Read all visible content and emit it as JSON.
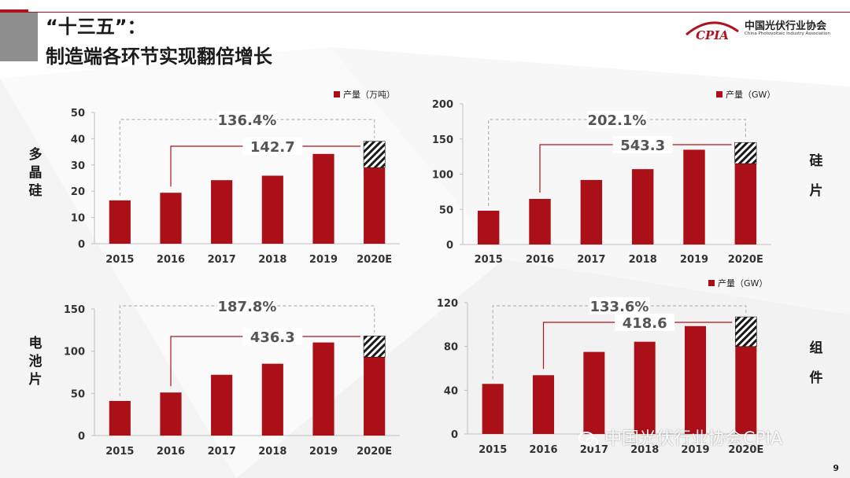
{
  "header": {
    "title_line1": "“十三五”：",
    "title_line2": "制造端各环节实现翻倍增长"
  },
  "logo": {
    "mark_text": "CPIA",
    "name_cn": "中国光伏行业协会",
    "name_en": "China Photovoltaic Industry Association"
  },
  "side_labels": {
    "polysilicon": "多晶硅",
    "wafer": "硅片",
    "cell": "电池片",
    "module": "组件"
  },
  "footer": {
    "page_number": "9",
    "watermark": "中国光伏行业协会CPIA"
  },
  "colors": {
    "bar": "#ab0f17",
    "accent": "#b0121d",
    "dashed": "#b5b5b5"
  },
  "chart_data": [
    {
      "type": "bar",
      "categories": [
        "2015",
        "2016",
        "2017",
        "2018",
        "2019",
        "2020E"
      ],
      "series": [
        {
          "name": "产量（万吨）",
          "values": [
            16.5,
            19.4,
            24.2,
            25.9,
            34.2,
            29
          ]
        }
      ],
      "forecast_extra": 10,
      "ylim": [
        0,
        50
      ],
      "yticks": [
        0,
        10,
        20,
        30,
        40,
        50
      ],
      "growth_total_label": "136.4%",
      "growth_cagr_label": "142.7",
      "legend": "产量（万吨）",
      "legend_position": "top-right",
      "grid": false
    },
    {
      "type": "bar",
      "categories": [
        "2015",
        "2016",
        "2017",
        "2018",
        "2019",
        "2020E"
      ],
      "series": [
        {
          "name": "产量（GW）",
          "values": [
            48,
            64.8,
            91.7,
            107.1,
            134.7,
            115
          ]
        }
      ],
      "forecast_extra": 30,
      "ylim": [
        0,
        200
      ],
      "yticks": [
        0,
        50,
        100,
        150,
        200
      ],
      "growth_total_label": "202.1%",
      "growth_cagr_label": "543.3",
      "legend": "产量（GW）",
      "legend_position": "top-right",
      "grid": false
    },
    {
      "type": "bar",
      "categories": [
        "2015",
        "2016",
        "2017",
        "2018",
        "2019",
        "2020E"
      ],
      "series": [
        {
          "name": "产量（GW）",
          "values": [
            41,
            51,
            72,
            85.1,
            110.3,
            93
          ]
        }
      ],
      "forecast_extra": 25,
      "ylim": [
        0,
        150
      ],
      "yticks": [
        0,
        50,
        100,
        150
      ],
      "growth_total_label": "187.8%",
      "growth_cagr_label": "436.3",
      "legend": "",
      "legend_position": "",
      "grid": false
    },
    {
      "type": "bar",
      "categories": [
        "2015",
        "2016",
        "2017",
        "2018",
        "2019",
        "2020E"
      ],
      "series": [
        {
          "name": "产量（GW）",
          "values": [
            45.8,
            53.7,
            75,
            84.3,
            98.6,
            80
          ]
        }
      ],
      "forecast_extra": 27,
      "ylim": [
        0,
        120
      ],
      "yticks": [
        0,
        40,
        80,
        120
      ],
      "growth_total_label": "133.6%",
      "growth_cagr_label": "418.6",
      "legend": "产量（GW）",
      "legend_position": "top-right",
      "grid": false
    }
  ]
}
